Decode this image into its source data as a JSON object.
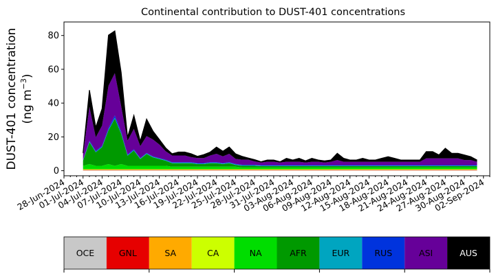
{
  "chart_data": {
    "type": "area",
    "title": "Continental contribution to DUST-401 concentrations",
    "ylabel": {
      "line1": "DUST-401 concentration",
      "line2_prefix": "(ng m",
      "line2_sup": "−3",
      "line2_suffix": ")"
    },
    "ylim": [
      -3,
      88
    ],
    "yticks": [
      0,
      20,
      40,
      60,
      80
    ],
    "xlim": [
      "2024-06-28",
      "2024-09-03"
    ],
    "xticks": [
      "2024-06-28",
      "2024-07-01",
      "2024-07-04",
      "2024-07-07",
      "2024-07-10",
      "2024-07-13",
      "2024-07-16",
      "2024-07-19",
      "2024-07-22",
      "2024-07-25",
      "2024-07-28",
      "2024-07-31",
      "2024-08-03",
      "2024-08-06",
      "2024-08-09",
      "2024-08-12",
      "2024-08-15",
      "2024-08-18",
      "2024-08-21",
      "2024-08-24",
      "2024-08-27",
      "2024-08-30",
      "2024-09-02"
    ],
    "xticklabels": [
      "28-Jun-2024",
      "01-Jul-2024",
      "04-Jul-2024",
      "07-Jul-2024",
      "10-Jul-2024",
      "13-Jul-2024",
      "16-Jul-2024",
      "19-Jul-2024",
      "22-Jul-2024",
      "25-Jul-2024",
      "28-Jul-2024",
      "31-Jul-2024",
      "03-Aug-2024",
      "06-Aug-2024",
      "09-Aug-2024",
      "12-Aug-2024",
      "15-Aug-2024",
      "18-Aug-2024",
      "21-Aug-2024",
      "24-Aug-2024",
      "27-Aug-2024",
      "30-Aug-2024",
      "02-Sep-2024"
    ],
    "x": [
      "2024-07-01",
      "2024-07-02",
      "2024-07-03",
      "2024-07-04",
      "2024-07-05",
      "2024-07-06",
      "2024-07-07",
      "2024-07-08",
      "2024-07-09",
      "2024-07-10",
      "2024-07-11",
      "2024-07-12",
      "2024-07-13",
      "2024-07-14",
      "2024-07-15",
      "2024-07-16",
      "2024-07-17",
      "2024-07-18",
      "2024-07-19",
      "2024-07-20",
      "2024-07-21",
      "2024-07-22",
      "2024-07-23",
      "2024-07-24",
      "2024-07-25",
      "2024-07-26",
      "2024-07-27",
      "2024-07-28",
      "2024-07-29",
      "2024-07-30",
      "2024-07-31",
      "2024-08-01",
      "2024-08-02",
      "2024-08-03",
      "2024-08-04",
      "2024-08-05",
      "2024-08-06",
      "2024-08-07",
      "2024-08-08",
      "2024-08-09",
      "2024-08-10",
      "2024-08-11",
      "2024-08-12",
      "2024-08-13",
      "2024-08-14",
      "2024-08-15",
      "2024-08-16",
      "2024-08-17",
      "2024-08-18",
      "2024-08-19",
      "2024-08-20",
      "2024-08-21",
      "2024-08-22",
      "2024-08-23",
      "2024-08-24",
      "2024-08-25",
      "2024-08-26",
      "2024-08-27",
      "2024-08-28",
      "2024-08-29",
      "2024-08-30",
      "2024-08-31",
      "2024-09-01"
    ],
    "series": [
      {
        "name": "OCE",
        "color": "#c8c8c8",
        "values": [
          0.2,
          0.2,
          0.2,
          0.2,
          0.2,
          0.2,
          0.2,
          0.2,
          0.2,
          0.2,
          0.2,
          0.2,
          0.2,
          0.2,
          0.2,
          0.2,
          0.2,
          0.2,
          0.2,
          0.2,
          0.2,
          0.2,
          0.2,
          0.2,
          0.2,
          0.2,
          0.2,
          0.2,
          0.2,
          0.2,
          0.2,
          0.2,
          0.2,
          0.2,
          0.2,
          0.2,
          0.2,
          0.2,
          0.2,
          0.2,
          0.2,
          0.2,
          0.2,
          0.2,
          0.2,
          0.2,
          0.2,
          0.2,
          0.2,
          0.2,
          0.2,
          0.2,
          0.2,
          0.2,
          0.2,
          0.2,
          0.2,
          0.2,
          0.2,
          0.2,
          0.2,
          0.2,
          0.2
        ]
      },
      {
        "name": "GNL",
        "color": "#e60000",
        "values": [
          0.2,
          0.2,
          0.2,
          0.2,
          0.2,
          0.2,
          0.2,
          0.2,
          0.2,
          0.2,
          0.2,
          0.2,
          0.2,
          0.2,
          0.2,
          0.2,
          0.2,
          0.2,
          0.2,
          0.2,
          0.2,
          0.2,
          0.2,
          0.2,
          0.2,
          0.2,
          0.2,
          0.2,
          0.2,
          0.2,
          0.2,
          0.2,
          0.2,
          0.2,
          0.2,
          0.2,
          0.2,
          0.2,
          0.2,
          0.2,
          0.2,
          0.2,
          0.2,
          0.2,
          0.2,
          0.2,
          0.2,
          0.2,
          0.2,
          0.2,
          0.2,
          0.2,
          0.2,
          0.2,
          0.2,
          0.2,
          0.2,
          0.2,
          0.2,
          0.2,
          0.2,
          0.2,
          0.2
        ]
      },
      {
        "name": "SA",
        "color": "#ffaa00",
        "values": [
          0.2,
          0.2,
          0.2,
          0.2,
          0.2,
          0.2,
          0.2,
          0.2,
          0.2,
          0.2,
          0.2,
          0.2,
          0.2,
          0.2,
          0.2,
          0.2,
          0.2,
          0.2,
          0.2,
          0.2,
          0.2,
          0.2,
          0.2,
          0.2,
          0.2,
          0.2,
          0.2,
          0.2,
          0.2,
          0.2,
          0.2,
          0.2,
          0.2,
          0.2,
          0.2,
          0.2,
          0.2,
          0.2,
          0.2,
          0.2,
          0.2,
          0.2,
          0.2,
          0.2,
          0.2,
          0.2,
          0.2,
          0.2,
          0.2,
          0.2,
          0.2,
          0.2,
          0.2,
          0.2,
          0.2,
          0.2,
          0.2,
          0.2,
          0.2,
          0.2,
          0.2,
          0.2,
          0.2
        ]
      },
      {
        "name": "CA",
        "color": "#ccff00",
        "values": [
          0.3,
          0.3,
          0.3,
          0.3,
          0.3,
          0.3,
          0.3,
          0.3,
          0.3,
          0.3,
          0.3,
          0.3,
          0.3,
          0.3,
          0.3,
          0.3,
          0.3,
          0.3,
          0.3,
          0.3,
          0.3,
          0.3,
          0.3,
          0.3,
          0.3,
          0.3,
          0.3,
          0.3,
          0.3,
          0.3,
          0.3,
          0.3,
          0.3,
          0.3,
          0.3,
          0.3,
          0.3,
          0.3,
          0.3,
          0.3,
          0.3,
          0.3,
          0.3,
          0.3,
          0.3,
          0.3,
          0.3,
          0.3,
          0.3,
          0.3,
          0.3,
          0.3,
          0.3,
          0.3,
          0.3,
          0.3,
          0.3,
          0.3,
          0.3,
          0.3,
          0.3,
          0.3,
          0.3
        ]
      },
      {
        "name": "NA",
        "color": "#00dd00",
        "values": [
          2,
          3,
          2,
          2,
          3,
          2,
          3,
          2,
          2,
          2,
          2,
          2,
          2,
          2,
          1.5,
          1.5,
          1.5,
          1.5,
          1.5,
          1.5,
          1.5,
          1.5,
          1.5,
          1.5,
          1.5,
          1,
          1,
          1,
          1,
          1,
          1,
          1,
          1,
          1,
          1,
          1,
          1,
          1,
          1,
          1,
          1,
          1,
          1,
          1,
          1,
          1,
          1,
          1,
          1,
          1,
          1,
          1,
          1,
          1,
          1,
          1,
          1,
          1,
          1,
          1,
          1,
          1,
          1
        ]
      },
      {
        "name": "AFR",
        "color": "#009900",
        "values": [
          3,
          13,
          8,
          11,
          20,
          28,
          18,
          6,
          9,
          4,
          7,
          5,
          4,
          3,
          2,
          2,
          2,
          2,
          1.5,
          1.5,
          2,
          2,
          1.5,
          2,
          1,
          1,
          1,
          1,
          0.8,
          0.8,
          0.8,
          0.8,
          0.8,
          0.8,
          0.8,
          0.8,
          0.8,
          0.8,
          0.8,
          0.8,
          0.8,
          0.8,
          0.8,
          0.8,
          0.8,
          0.8,
          0.8,
          0.8,
          0.8,
          0.8,
          0.8,
          0.8,
          0.8,
          0.8,
          0.8,
          0.8,
          0.8,
          0.8,
          0.8,
          0.8,
          0.8,
          0.8,
          0.8
        ]
      },
      {
        "name": "EUR",
        "color": "#00a5c0",
        "values": [
          0.3,
          0.3,
          0.3,
          0.3,
          0.3,
          0.3,
          0.3,
          0.3,
          0.3,
          0.3,
          0.3,
          0.3,
          0.3,
          0.3,
          0.3,
          0.3,
          0.3,
          0.3,
          0.3,
          0.3,
          0.3,
          0.3,
          0.3,
          0.3,
          0.3,
          0.3,
          0.3,
          0.3,
          0.3,
          0.3,
          0.3,
          0.3,
          0.3,
          0.3,
          0.3,
          0.3,
          0.3,
          0.3,
          0.3,
          0.3,
          0.3,
          0.3,
          0.3,
          0.3,
          0.3,
          0.3,
          0.3,
          0.3,
          0.3,
          0.3,
          0.3,
          0.3,
          0.3,
          0.3,
          0.3,
          0.3,
          0.3,
          0.3,
          0.3,
          0.3,
          0.3,
          0.3,
          0.3
        ]
      },
      {
        "name": "RUS",
        "color": "#0033dd",
        "values": [
          0.3,
          0.5,
          0.5,
          0.5,
          1,
          1.5,
          1,
          0.5,
          0.5,
          0.3,
          0.3,
          0.3,
          0.3,
          0.3,
          0.3,
          0.3,
          0.3,
          0.3,
          0.3,
          0.3,
          0.3,
          0.3,
          0.3,
          0.3,
          0.3,
          0.3,
          0.3,
          0.3,
          0.3,
          0.3,
          0.3,
          0.3,
          0.3,
          0.3,
          0.3,
          0.3,
          0.3,
          0.3,
          0.3,
          0.3,
          0.3,
          0.3,
          0.3,
          0.3,
          0.3,
          0.3,
          0.3,
          0.3,
          0.3,
          0.3,
          0.3,
          0.3,
          0.3,
          0.3,
          0.3,
          0.3,
          0.3,
          0.3,
          0.3,
          0.3,
          0.3,
          0.3,
          0.3
        ]
      },
      {
        "name": "ASI",
        "color": "#660099",
        "values": [
          3,
          20,
          8,
          12,
          25,
          25,
          15,
          8,
          12,
          7,
          10,
          10,
          8,
          5,
          4,
          4,
          4,
          3,
          3,
          3,
          4,
          5,
          4,
          5,
          3,
          3,
          3,
          2,
          1.5,
          2,
          2,
          1.5,
          2,
          2,
          2,
          1.5,
          2,
          2,
          1.5,
          2,
          3,
          2,
          2,
          2,
          2,
          2,
          2,
          2,
          2,
          2,
          2,
          2,
          2,
          2,
          4,
          4,
          4,
          4,
          4,
          4,
          3,
          3,
          2
        ]
      },
      {
        "name": "AUS",
        "color": "#000000",
        "values": [
          1,
          10,
          6,
          10,
          30,
          25,
          20,
          2,
          8,
          3,
          10,
          5,
          3,
          2,
          1,
          2,
          2,
          2,
          1,
          2,
          2,
          4,
          3,
          4,
          3,
          2,
          1,
          1,
          0.5,
          1,
          1,
          0.5,
          2,
          1,
          2,
          1,
          2,
          1,
          1,
          1,
          4,
          2,
          1,
          1,
          2,
          1,
          1,
          2,
          3,
          2,
          1,
          1,
          1,
          1,
          4,
          4,
          2,
          6,
          3,
          3,
          3,
          2,
          1
        ]
      }
    ],
    "legend": {
      "placement": "bottom",
      "style": "colorbar"
    }
  }
}
